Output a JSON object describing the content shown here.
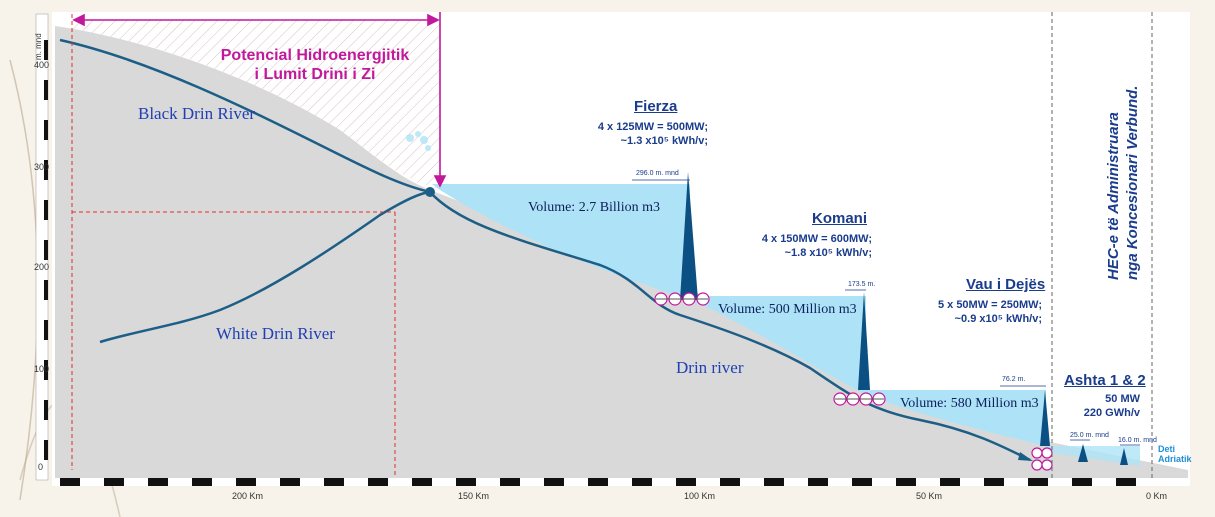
{
  "potencial": {
    "line1": "Potencial Hidroenergjitik",
    "line2": "i Lumit Drini i Zi"
  },
  "rivers": {
    "black": "Black Drin River",
    "white": "White Drin River",
    "drin": "Drin river"
  },
  "fierza": {
    "name": "Fierza",
    "spec1": "4 x 125MW = 500MW;",
    "spec2": "~1.3 x10⁵ kWh/v;",
    "level": "296.0 m. mnd",
    "volume": "Volume: 2.7 Billion m3"
  },
  "komani": {
    "name": "Komani",
    "spec1": "4 x 150MW = 600MW;",
    "spec2": "~1.8 x10⁵ kWh/v;",
    "level": "173.5 m.",
    "volume": "Volume: 500 Million m3"
  },
  "vau": {
    "name": "Vau i Dejës",
    "spec1": "5 x 50MW = 250MW;",
    "spec2": "~0.9 x10⁵ kWh/v;",
    "level": "76.2 m.",
    "volume": "Volume: 580 Million m3"
  },
  "ashta": {
    "name": "Ashta 1 & 2",
    "spec1": "50 MW",
    "spec2": "220 GWh/v",
    "level1": "25.0 m. mnd",
    "level2": "16.0 m. mnd"
  },
  "deti": {
    "line1": "Deti",
    "line2": "Adriatik"
  },
  "vertical": {
    "line1": "HEC-e të Administruara",
    "line2": "nga Koncesionari Verbund."
  },
  "y_axis": {
    "unit": "m. mnd",
    "ticks": [
      "400",
      "300",
      "200",
      "100",
      "0"
    ]
  },
  "x_axis": {
    "ticks": [
      "200 Km",
      "150 Km",
      "100 Km",
      "50 Km",
      "0 Km"
    ]
  },
  "colors": {
    "water": "#aee3f7",
    "ground": "#d9d9d9",
    "river": "#1d5e86",
    "dam": "#0c4f82",
    "potencial": "#c2189b",
    "dashed_red": "#e03030"
  }
}
